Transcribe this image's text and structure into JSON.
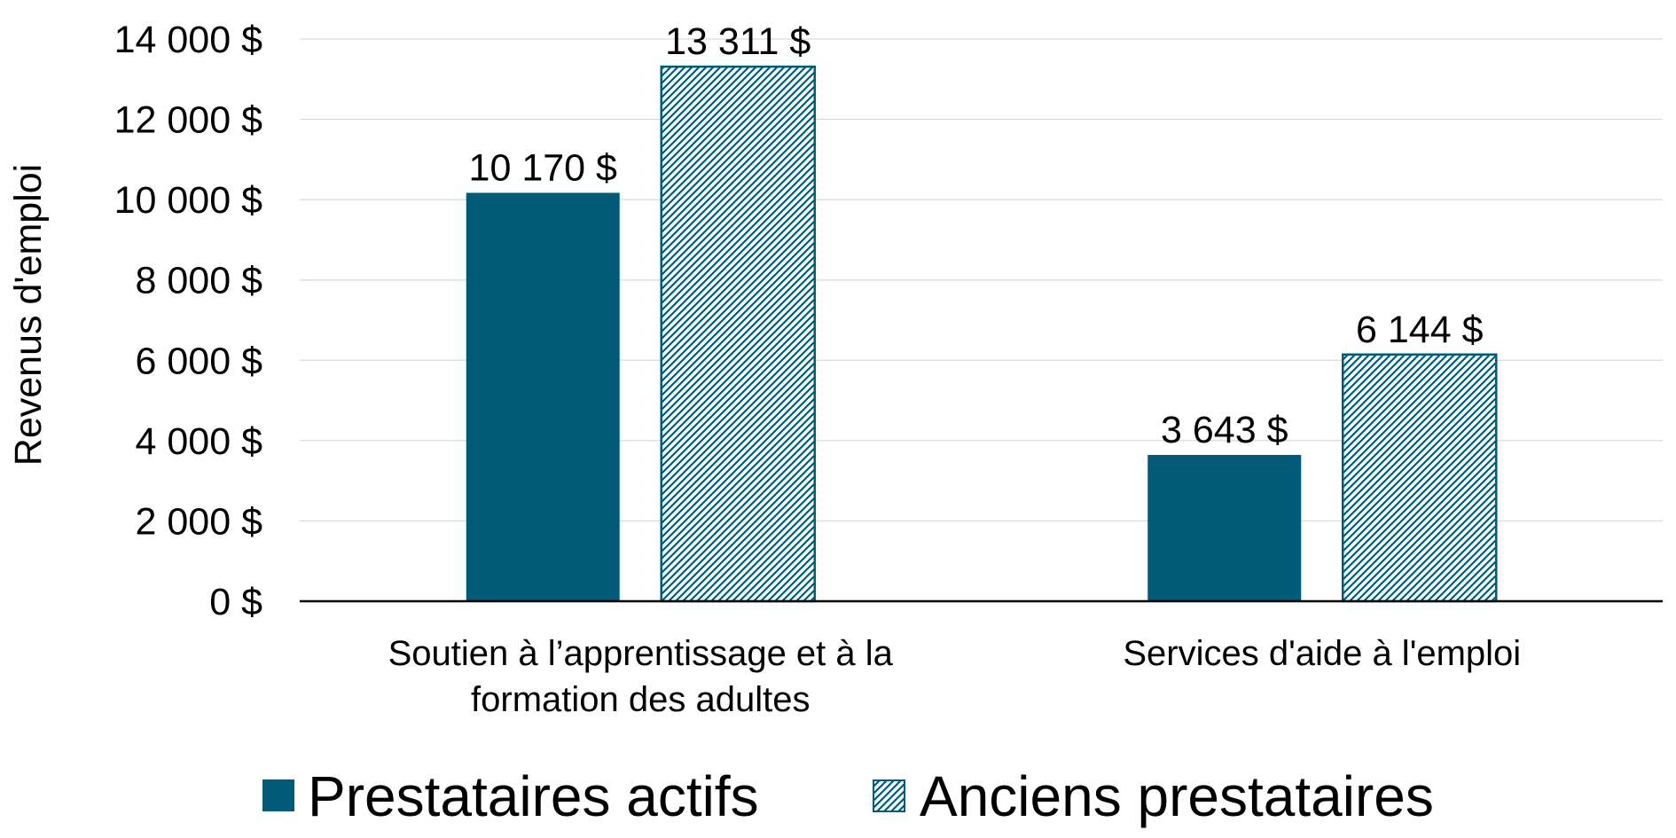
{
  "chart_data": {
    "type": "bar",
    "title": "",
    "xlabel": "",
    "ylabel": "Revenus d'emploi",
    "ylim": [
      0,
      14000
    ],
    "ytick_step": 2000,
    "yticks": [
      "0 $",
      "2 000 $",
      "4 000 $",
      "6 000 $",
      "8 000 $",
      "10 000 $",
      "12 000 $",
      "14 000 $"
    ],
    "grid": true,
    "legend_position": "bottom",
    "categories": [
      [
        "Soutien à l’apprentissage et à la",
        "formation des adultes"
      ],
      [
        "Services d'aide à l'emploi"
      ]
    ],
    "series": [
      {
        "name": "Prestataires actifs",
        "style": "solid",
        "values": [
          10170,
          3643
        ],
        "labels": [
          "10 170 $",
          "3 643 $"
        ]
      },
      {
        "name": "Anciens prestataires",
        "style": "hatched",
        "values": [
          13311,
          6144
        ],
        "labels": [
          "13 311 $",
          "6 144 $"
        ]
      }
    ],
    "colors": {
      "bar": "#005a78",
      "hatch_background": "#ffffff",
      "grid": "#d9d9d9",
      "axis": "#000000"
    }
  }
}
